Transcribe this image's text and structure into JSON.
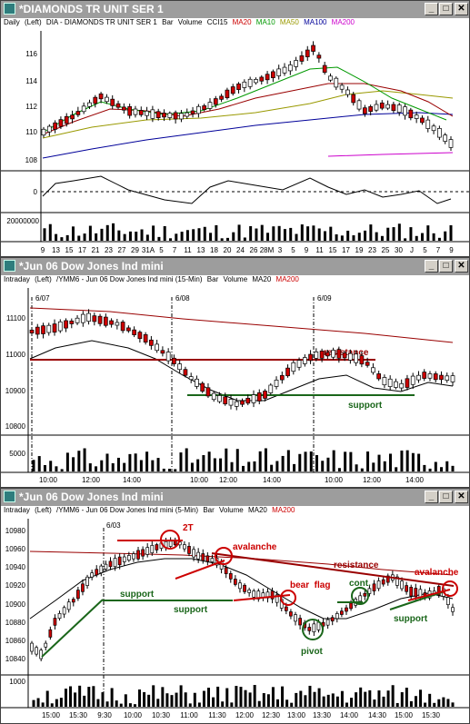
{
  "colors": {
    "up": "#ffffff",
    "down": "#cc0000",
    "ma20": "#cc0000",
    "ma10": "#009900",
    "ma50": "#999900",
    "ma100": "#000099",
    "ma200": "#cc00cc",
    "support": "#1a661a",
    "resistance": "#990000",
    "annot": "#cc0000"
  },
  "window1": {
    "title": "*DIAMONDS TR UNIT SER 1",
    "header": {
      "interval": "Daily",
      "axis": "(Left)",
      "symbol": "DIA - DIAMONDS TR UNIT SER 1",
      "style": "Bar",
      "volume": "Volume",
      "study": "CCI15",
      "ma20": "MA20",
      "ma10": "MA10",
      "ma50": "MA50",
      "ma100": "MA100",
      "ma200": "MA200"
    },
    "price_ticks": [
      "116",
      "114",
      "112",
      "110",
      "108"
    ],
    "cci_ticks": [
      "0"
    ],
    "vol_ticks": [
      "20000000"
    ],
    "x_ticks": [
      "9",
      "13",
      "15",
      "17",
      "21",
      "23",
      "27",
      "29",
      "31A",
      "5",
      "7",
      "11",
      "13",
      "18",
      "20",
      "24",
      "26",
      "28M",
      "3",
      "5",
      "9",
      "11",
      "15",
      "17",
      "19",
      "23",
      "25",
      "30",
      "J",
      "5",
      "7",
      "9"
    ]
  },
  "window2": {
    "title": "*Jun 06  Dow Jones Ind mini",
    "header": {
      "interval": "Intraday",
      "axis": "(Left)",
      "symbol": "/YMM6 - Jun 06  Dow Jones Ind mini (15-Min)",
      "style": "Bar",
      "volume": "Volume",
      "ma20": "MA20",
      "ma200": "MA200"
    },
    "price_ticks": [
      "11100",
      "11000",
      "10900",
      "10800"
    ],
    "vol_ticks": [
      "5000"
    ],
    "x_ticks": [
      "10:00",
      "12:00",
      "14:00",
      "10:00",
      "12:00",
      "14:00",
      "10:00",
      "12:00",
      "14:00"
    ],
    "dates": [
      "6/07",
      "6/08",
      "6/09"
    ],
    "labels": {
      "resistance": "resistance",
      "support": "support"
    }
  },
  "window3": {
    "title": "*Jun 06  Dow Jones Ind mini",
    "header": {
      "interval": "Intraday",
      "axis": "(Left)",
      "symbol": "/YMM6 - Jun 06  Dow Jones Ind mini (5-Min)",
      "style": "Bar",
      "volume": "Volume",
      "ma20": "MA20",
      "ma200": "MA200"
    },
    "price_ticks": [
      "10980",
      "10960",
      "10940",
      "10920",
      "10900",
      "10880",
      "10860",
      "10840"
    ],
    "vol_ticks": [
      "1000"
    ],
    "x_ticks": [
      "15:00",
      "15:30",
      "9:30",
      "10:00",
      "10:30",
      "11:00",
      "11:30",
      "12:00",
      "12:30",
      "13:00",
      "13:30",
      "14:00",
      "14:30",
      "15:00",
      "15:30"
    ],
    "dates": [
      "6/03"
    ],
    "labels": {
      "two_top": "2T",
      "avalanche1": "avalanche",
      "support1": "support",
      "support2": "support",
      "bear_flag": "bear  flag",
      "cont": "cont.",
      "pivot": "pivot",
      "resistance": "resistance",
      "avalanche2": "avalanche",
      "support3": "support"
    }
  }
}
